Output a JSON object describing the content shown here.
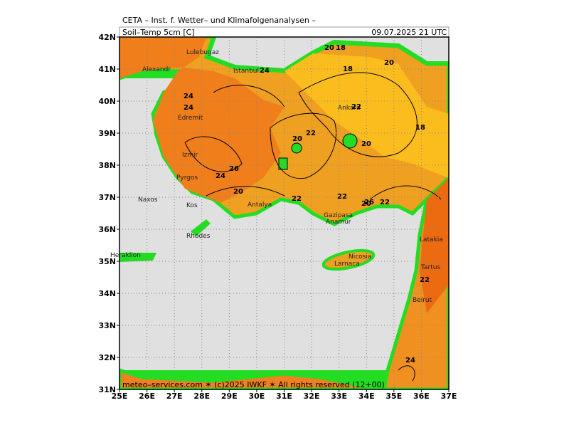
{
  "header": {
    "title": "CETA – Inst. f. Wetter– und Klimafolgenanalysen –",
    "variable": "Soil–Temp 5cm [C]",
    "valid": "09.07.2025 21 UTC"
  },
  "axes": {
    "lon_labels": [
      "25E",
      "26E",
      "27E",
      "28E",
      "29E",
      "30E",
      "31E",
      "32E",
      "33E",
      "34E",
      "35E",
      "36E",
      "37E"
    ],
    "lat_labels": [
      "42N",
      "41N",
      "40N",
      "39N",
      "38N",
      "37N",
      "36N",
      "35N",
      "34N",
      "33N",
      "32N",
      "31N"
    ]
  },
  "places": [
    "Lulebugaz",
    "Istanbul",
    "Alexandr",
    "Edremit",
    "Izmir",
    "Pyrgos",
    "Naxos",
    "Kos",
    "Rhodes",
    "Antalya",
    "Ankara",
    "Gazipasa",
    "Anamur",
    "Nicosia",
    "Larnaca",
    "Latakia",
    "Tartus",
    "Beirut",
    "Heraklion"
  ],
  "contour_labels": [
    "20",
    "18",
    "18",
    "20",
    "24",
    "24",
    "22",
    "22",
    "18",
    "20",
    "20",
    "20",
    "24",
    "26",
    "26",
    "20",
    "22",
    "22",
    "22",
    "24",
    "22",
    "24"
  ],
  "footer": "meteo–services.com ✶ (c)2025 IWKF ✶ All rights reserved (12+00)"
}
